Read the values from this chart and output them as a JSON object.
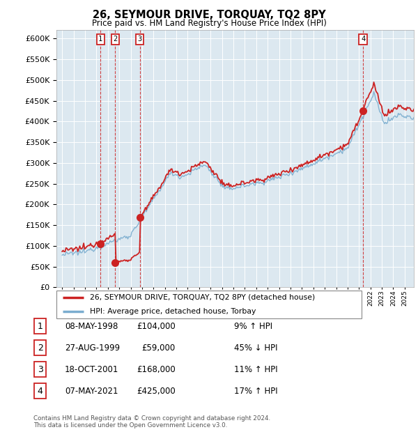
{
  "title": "26, SEYMOUR DRIVE, TORQUAY, TQ2 8PY",
  "subtitle": "Price paid vs. HM Land Registry's House Price Index (HPI)",
  "plot_bg_color": "#dce8f0",
  "ylim": [
    0,
    620000
  ],
  "yticks": [
    0,
    50000,
    100000,
    150000,
    200000,
    250000,
    300000,
    350000,
    400000,
    450000,
    500000,
    550000,
    600000
  ],
  "xlim_start": 1994.5,
  "xlim_end": 2025.8,
  "hpi_color": "#7aadcf",
  "price_color": "#cc2222",
  "transaction_color": "#cc2222",
  "transactions": [
    {
      "label": "1",
      "date": 1998.36,
      "price": 104000
    },
    {
      "label": "2",
      "date": 1999.65,
      "price": 59000
    },
    {
      "label": "3",
      "date": 2001.8,
      "price": 168000
    },
    {
      "label": "4",
      "date": 2021.35,
      "price": 425000
    }
  ],
  "legend_entries": [
    "26, SEYMOUR DRIVE, TORQUAY, TQ2 8PY (detached house)",
    "HPI: Average price, detached house, Torbay"
  ],
  "table_rows": [
    {
      "num": "1",
      "date": "08-MAY-1998",
      "price": "£104,000",
      "pct": "9% ↑ HPI"
    },
    {
      "num": "2",
      "date": "27-AUG-1999",
      "price": "£59,000",
      "pct": "45% ↓ HPI"
    },
    {
      "num": "3",
      "date": "18-OCT-2001",
      "price": "£168,000",
      "pct": "11% ↑ HPI"
    },
    {
      "num": "4",
      "date": "07-MAY-2021",
      "price": "£425,000",
      "pct": "17% ↑ HPI"
    }
  ],
  "footnote": "Contains HM Land Registry data © Crown copyright and database right 2024.\nThis data is licensed under the Open Government Licence v3.0."
}
